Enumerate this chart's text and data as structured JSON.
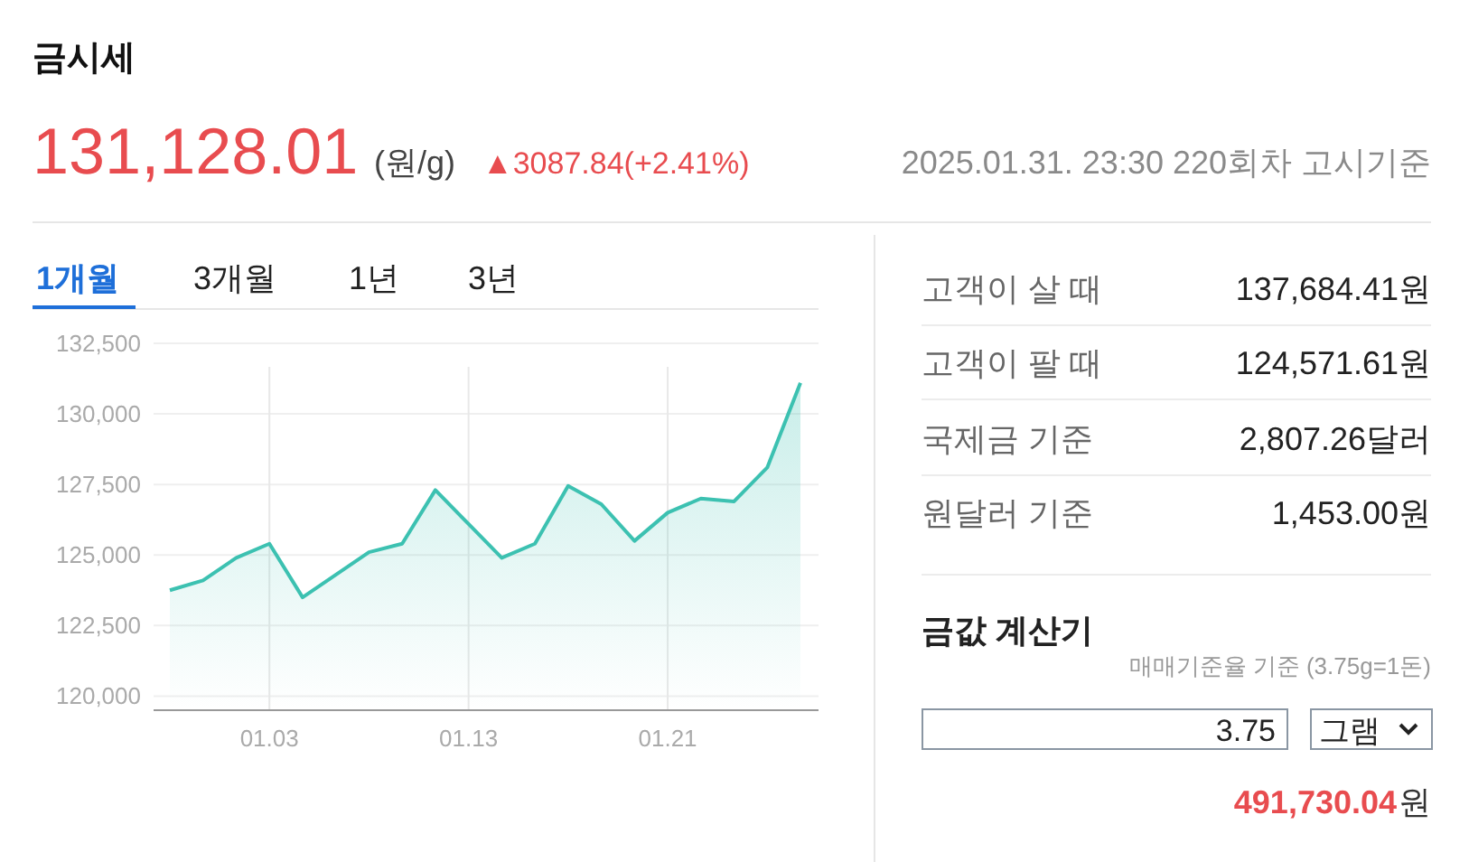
{
  "chart_data": [
    {
      "type": "area",
      "title": "금시세",
      "annotations": [
        "131,128.01",
        "(원/g)",
        "▲3087.84(+2.41%)",
        "2025.01.31. 23:30 220회차 고시기준",
        "1개월",
        "3개월",
        "1년",
        "3년"
      ],
      "categories": [
        null,
        null,
        null,
        "01.03",
        null,
        null,
        null,
        null,
        null,
        "01.13",
        null,
        null,
        null,
        null,
        null,
        "01.21",
        null,
        null,
        null,
        null
      ],
      "series": [
        {
          "color": "#3cc1b1",
          "values": [
            123750,
            124100,
            124900,
            125400,
            123500,
            124300,
            125100,
            125400,
            127300,
            126100,
            124900,
            125400,
            127450,
            126800,
            125500,
            126500,
            127000,
            126900,
            128100,
            131100
          ]
        }
      ],
      "ylim": [
        119500,
        132500
      ],
      "yticks": [
        {
          "value": 120000,
          "label": "120,000"
        },
        {
          "value": 122500,
          "label": "122,500"
        },
        {
          "value": 125000,
          "label": "125,000"
        },
        {
          "value": 127500,
          "label": "127,500"
        },
        {
          "value": 130000,
          "label": "130,000"
        },
        {
          "value": 132500,
          "label": "132,500"
        }
      ],
      "grid": true
    },
    {
      "type": "other",
      "title": "금값 계산기",
      "annotations": [
        "고객이 살 때",
        "137,684.41원",
        "고객이 팔 때",
        "124,571.61원",
        "국제금 기준",
        "2,807.26달러",
        "원달러 기준",
        "1,453.00원",
        "매매기준율 기준 (3.75g=1돈)",
        "3.75",
        "그램",
        "491,730.04",
        "원"
      ]
    }
  ]
}
